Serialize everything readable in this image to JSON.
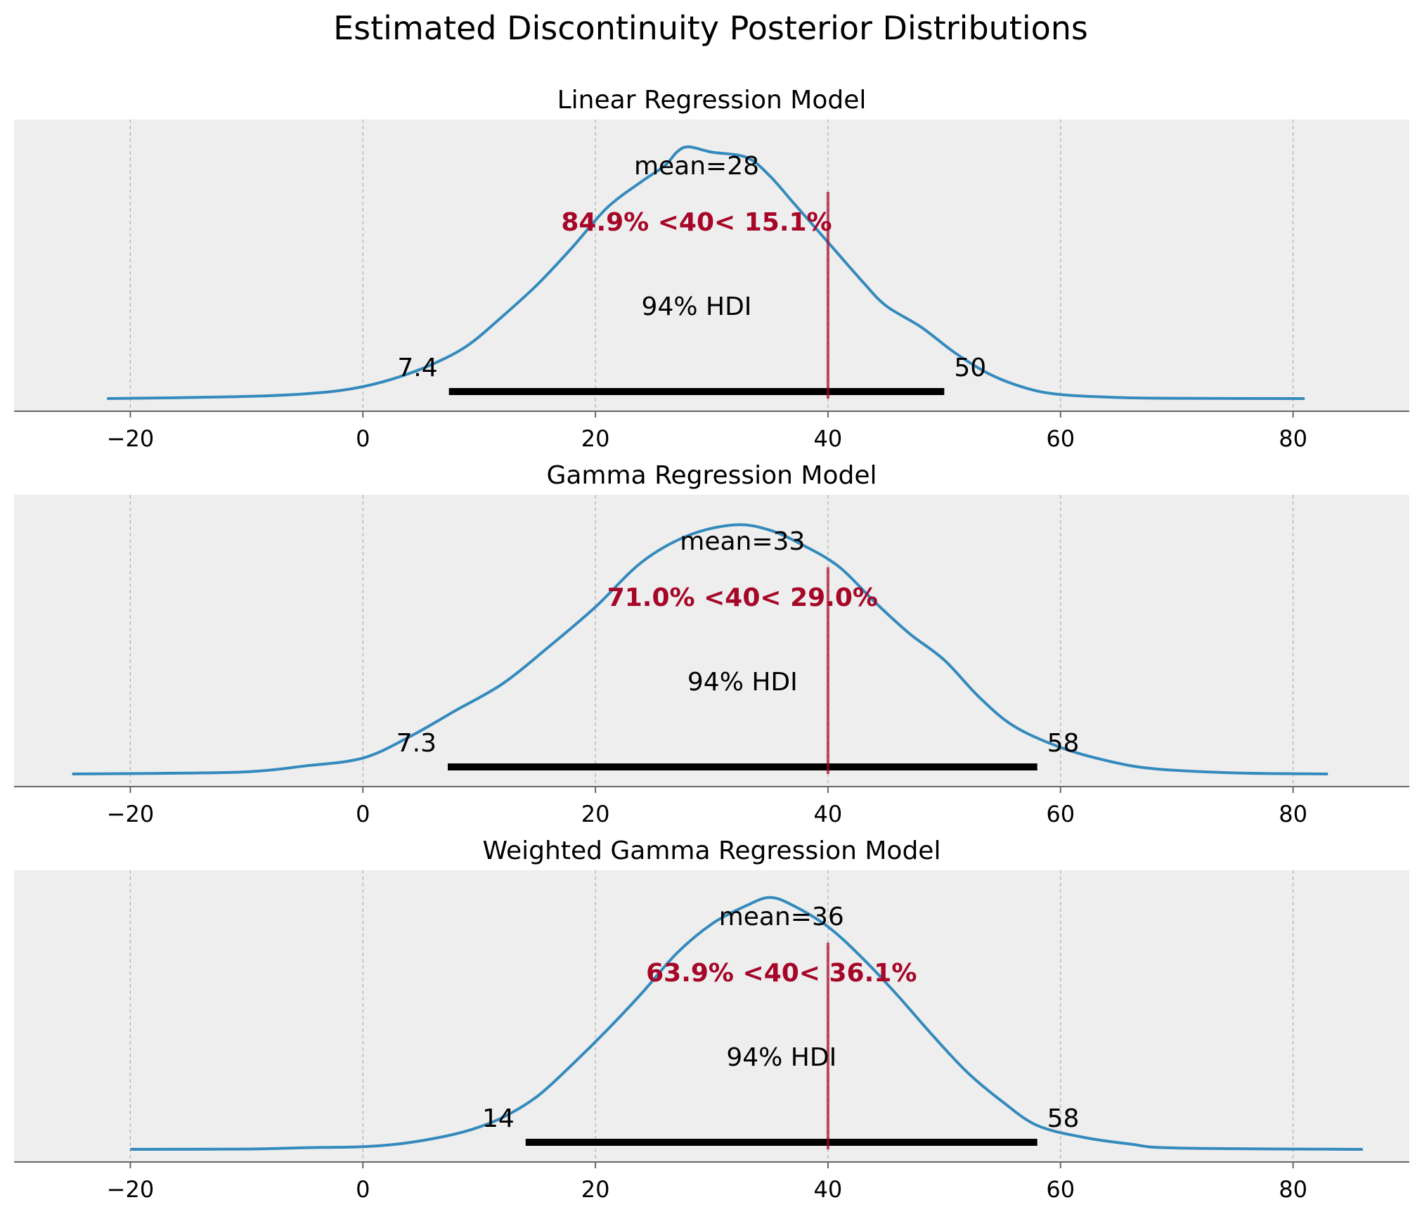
{
  "title": "Estimated Discontinuity Posterior Distributions",
  "colors": {
    "background": "#eeeeee",
    "grid": "#b0b0b0",
    "density_line": "#348abd",
    "reference": "#a60628",
    "hdi_bar": "#000000",
    "axis": "#666666"
  },
  "chart_data": [
    {
      "type": "line",
      "title": "Linear Regression Model",
      "xlim": [
        -30,
        90
      ],
      "xticks": [
        -20,
        0,
        20,
        40,
        60,
        80
      ],
      "xtick_labels": [
        "−20",
        "0",
        "20",
        "40",
        "60",
        "80"
      ],
      "grid": "vertical dashed",
      "density": {
        "x": [
          -22,
          -15,
          -8,
          -3,
          0,
          3,
          6,
          9,
          12,
          15,
          18,
          21,
          24,
          26,
          27,
          28,
          30,
          33,
          35,
          37,
          40,
          43,
          45,
          48,
          51,
          54,
          57,
          60,
          65,
          70,
          81
        ],
        "y": [
          0.0,
          0.004,
          0.011,
          0.025,
          0.045,
          0.08,
          0.13,
          0.2,
          0.31,
          0.43,
          0.57,
          0.72,
          0.82,
          0.88,
          0.93,
          0.95,
          0.93,
          0.91,
          0.84,
          0.74,
          0.59,
          0.44,
          0.35,
          0.27,
          0.17,
          0.09,
          0.04,
          0.015,
          0.004,
          0.001,
          0.0
        ]
      },
      "mean_label": "mean=28",
      "hdi_label": "94% HDI",
      "hdi": [
        7.4,
        50
      ],
      "hdi_low_label": "7.4",
      "hdi_high_label": "50",
      "ref_val": 40,
      "ref_label": "84.9% <40< 15.1%"
    },
    {
      "type": "line",
      "title": "Gamma Regression Model",
      "xlim": [
        -30,
        90
      ],
      "xticks": [
        -20,
        0,
        20,
        40,
        60,
        80
      ],
      "xtick_labels": [
        "−20",
        "0",
        "20",
        "40",
        "60",
        "80"
      ],
      "grid": "vertical dashed",
      "density": {
        "x": [
          -25,
          -18,
          -10,
          -5,
          0,
          4,
          8,
          12,
          16,
          20,
          24,
          28,
          32,
          35,
          38,
          41,
          44,
          47,
          50,
          53,
          56,
          60,
          64,
          68,
          75,
          83
        ],
        "y": [
          0.0,
          0.002,
          0.008,
          0.03,
          0.06,
          0.14,
          0.24,
          0.34,
          0.48,
          0.63,
          0.8,
          0.9,
          0.94,
          0.92,
          0.86,
          0.78,
          0.65,
          0.53,
          0.43,
          0.29,
          0.18,
          0.1,
          0.05,
          0.02,
          0.004,
          0.0
        ]
      },
      "mean_label": "mean=33",
      "hdi_label": "94% HDI",
      "hdi": [
        7.3,
        58
      ],
      "hdi_low_label": "7.3",
      "hdi_high_label": "58",
      "ref_val": 40,
      "ref_label": "71.0% <40< 29.0%"
    },
    {
      "type": "line",
      "title": "Weighted Gamma Regression Model",
      "xlim": [
        -30,
        90
      ],
      "xticks": [
        -20,
        0,
        20,
        40,
        60,
        80
      ],
      "xtick_labels": [
        "−20",
        "0",
        "20",
        "40",
        "60",
        "80"
      ],
      "grid": "vertical dashed",
      "density": {
        "x": [
          -20,
          -10,
          -5,
          0,
          3,
          6,
          9,
          12,
          15,
          18,
          21,
          24,
          27,
          30,
          33,
          35,
          37,
          40,
          43,
          46,
          49,
          52,
          55,
          58,
          62,
          66,
          70,
          86
        ],
        "y": [
          0.0,
          0.001,
          0.006,
          0.01,
          0.02,
          0.04,
          0.07,
          0.12,
          0.2,
          0.32,
          0.45,
          0.59,
          0.74,
          0.85,
          0.92,
          0.95,
          0.92,
          0.84,
          0.72,
          0.58,
          0.43,
          0.29,
          0.18,
          0.09,
          0.045,
          0.02,
          0.005,
          0.0
        ]
      },
      "mean_label": "mean=36",
      "hdi_label": "94% HDI",
      "hdi": [
        14,
        58
      ],
      "hdi_low_label": "14",
      "hdi_high_label": "58",
      "ref_val": 40,
      "ref_label": "63.9% <40< 36.1%"
    }
  ]
}
